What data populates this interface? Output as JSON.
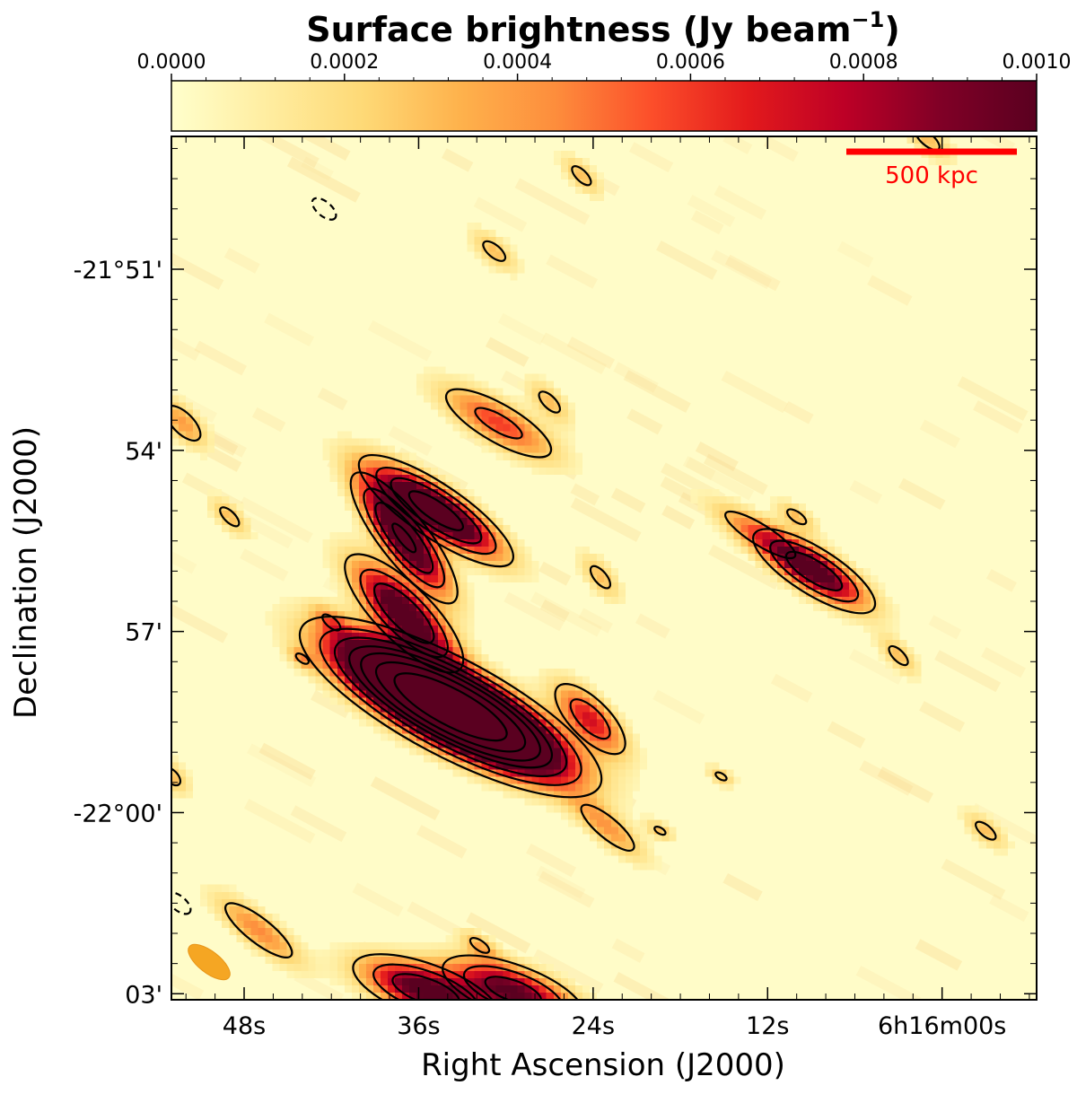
{
  "chart_data": {
    "type": "heatmap",
    "title": "",
    "colorbar": {
      "label": "Surface brightness (Jy beam",
      "label_exponent": "−1",
      "label_close": ")",
      "ticks": [
        "0.0000",
        "0.0002",
        "0.0004",
        "0.0006",
        "0.0008",
        "0.0010"
      ],
      "range": [
        0.0,
        0.001
      ],
      "colormap": [
        "#ffffcc",
        "#ffeda0",
        "#fed976",
        "#feb24c",
        "#fd8d3c",
        "#fc4e2a",
        "#e31a1c",
        "#bd0026",
        "#800026",
        "#5a0020"
      ]
    },
    "xlabel": "Right Ascension (J2000)",
    "ylabel": "Declination (J2000)",
    "x_ticks": [
      {
        "label": "48s",
        "ra_sec": 48
      },
      {
        "label": "36s",
        "ra_sec": 36
      },
      {
        "label": "24s",
        "ra_sec": 24
      },
      {
        "label": "12s",
        "ra_sec": 12
      },
      {
        "label": "6h16m00s",
        "ra_sec": 0
      }
    ],
    "x_range_sec": [
      53,
      -6.5
    ],
    "y_ticks": [
      {
        "label": "-21°51'",
        "dec_arcmin": -51
      },
      {
        "label": "54'",
        "dec_arcmin": -54
      },
      {
        "label": "57'",
        "dec_arcmin": -57
      },
      {
        "label": "-22°00'",
        "dec_arcmin": -60
      },
      {
        "label": "03'",
        "dec_arcmin": -63
      }
    ],
    "y_range_arcmin": [
      -63.1,
      -48.8
    ],
    "scale_bar": {
      "label": "500 kpc",
      "color": "#ff0000"
    },
    "beam_color": "#f5a623",
    "contour_color": "#000000",
    "sources": [
      {
        "ra": 33.8,
        "dec": -58.25,
        "peak": 0.0045,
        "sx": 1.9,
        "sy": 0.55,
        "angle": 28,
        "ncont": 7
      },
      {
        "ra": 34.8,
        "dec": -55.0,
        "peak": 0.0015,
        "sx": 1.3,
        "sy": 0.38,
        "angle": 34,
        "ncont": 4
      },
      {
        "ra": 37.0,
        "dec": -55.45,
        "peak": 0.0013,
        "sx": 1.2,
        "sy": 0.36,
        "angle": 52,
        "ncont": 4
      },
      {
        "ra": 37.0,
        "dec": -56.7,
        "peak": 0.0012,
        "sx": 1.2,
        "sy": 0.42,
        "angle": 45,
        "ncont": 3
      },
      {
        "ra": 8.8,
        "dec": -56.0,
        "peak": 0.0011,
        "sx": 1.1,
        "sy": 0.36,
        "angle": 32,
        "ncont": 3
      },
      {
        "ra": 12.5,
        "dec": -55.4,
        "peak": 0.0004,
        "sx": 1.1,
        "sy": 0.28,
        "angle": 32,
        "ncont": 1
      },
      {
        "ra": 30.5,
        "dec": -53.55,
        "peak": 0.0006,
        "sx": 1.2,
        "sy": 0.38,
        "angle": 30,
        "ncont": 2
      },
      {
        "ra": 24.2,
        "dec": -58.45,
        "peak": 0.0007,
        "sx": 0.85,
        "sy": 0.36,
        "angle": 45,
        "ncont": 2
      },
      {
        "ra": 35.5,
        "dec": -62.95,
        "peak": 0.0011,
        "sx": 1.2,
        "sy": 0.42,
        "angle": 20,
        "ncont": 3
      },
      {
        "ra": 29.5,
        "dec": -62.95,
        "peak": 0.001,
        "sx": 1.2,
        "sy": 0.42,
        "angle": 20,
        "ncont": 3
      },
      {
        "ra": 47.0,
        "dec": -61.95,
        "peak": 0.00045,
        "sx": 1.0,
        "sy": 0.3,
        "angle": 38,
        "ncont": 1
      },
      {
        "ra": 23.0,
        "dec": -60.25,
        "peak": 0.0004,
        "sx": 0.9,
        "sy": 0.28,
        "angle": 40,
        "ncont": 1
      },
      {
        "ra": 27.0,
        "dec": -53.2,
        "peak": 0.0003,
        "sx": 0.55,
        "sy": 0.25,
        "angle": 45,
        "ncont": 1
      },
      {
        "ra": 23.5,
        "dec": -56.1,
        "peak": 0.0003,
        "sx": 0.55,
        "sy": 0.25,
        "angle": 50,
        "ncont": 1
      },
      {
        "ra": 30.8,
        "dec": -50.7,
        "peak": 0.0003,
        "sx": 0.55,
        "sy": 0.25,
        "angle": 40,
        "ncont": 1
      },
      {
        "ra": 24.8,
        "dec": -49.45,
        "peak": 0.0003,
        "sx": 0.5,
        "sy": 0.22,
        "angle": 45,
        "ncont": 1
      },
      {
        "ra": 52.2,
        "dec": -53.55,
        "peak": 0.0004,
        "sx": 0.6,
        "sy": 0.28,
        "angle": 45,
        "ncont": 1
      },
      {
        "ra": 49.0,
        "dec": -55.1,
        "peak": 0.0003,
        "sx": 0.5,
        "sy": 0.22,
        "angle": 45,
        "ncont": 1
      },
      {
        "ra": 42.0,
        "dec": -56.85,
        "peak": 0.0003,
        "sx": 0.45,
        "sy": 0.2,
        "angle": 40,
        "ncont": 1
      },
      {
        "ra": 44.0,
        "dec": -57.45,
        "peak": 0.0003,
        "sx": 0.3,
        "sy": 0.15,
        "angle": 35,
        "ncont": 1
      },
      {
        "ra": 10.0,
        "dec": -55.1,
        "peak": 0.0003,
        "sx": 0.45,
        "sy": 0.2,
        "angle": 35,
        "ncont": 1
      },
      {
        "ra": 3.0,
        "dec": -57.4,
        "peak": 0.0003,
        "sx": 0.5,
        "sy": 0.22,
        "angle": 45,
        "ncont": 1
      },
      {
        "ra": -3.0,
        "dec": -60.3,
        "peak": 0.0003,
        "sx": 0.5,
        "sy": 0.22,
        "angle": 40,
        "ncont": 1
      },
      {
        "ra": 15.2,
        "dec": -59.4,
        "peak": 0.00028,
        "sx": 0.3,
        "sy": 0.15,
        "angle": 30,
        "ncont": 1
      },
      {
        "ra": 19.4,
        "dec": -60.3,
        "peak": 0.00028,
        "sx": 0.3,
        "sy": 0.15,
        "angle": 30,
        "ncont": 1
      },
      {
        "ra": 31.8,
        "dec": -62.2,
        "peak": 0.0003,
        "sx": 0.45,
        "sy": 0.2,
        "angle": 35,
        "ncont": 1
      },
      {
        "ra": 1.0,
        "dec": -48.85,
        "peak": 0.0003,
        "sx": 0.6,
        "sy": 0.25,
        "angle": 40,
        "ncont": 1
      },
      {
        "ra": 53.0,
        "dec": -59.4,
        "peak": 0.0003,
        "sx": 0.45,
        "sy": 0.25,
        "angle": 45,
        "ncont": 1
      }
    ],
    "negative_contours": [
      {
        "ra": 42.5,
        "dec": -50.0
      },
      {
        "ra": 52.5,
        "dec": -61.5
      }
    ],
    "contour_levels": [
      0.00024,
      0.0005,
      0.0008,
      0.0012,
      0.0016,
      0.0022,
      0.003
    ]
  }
}
